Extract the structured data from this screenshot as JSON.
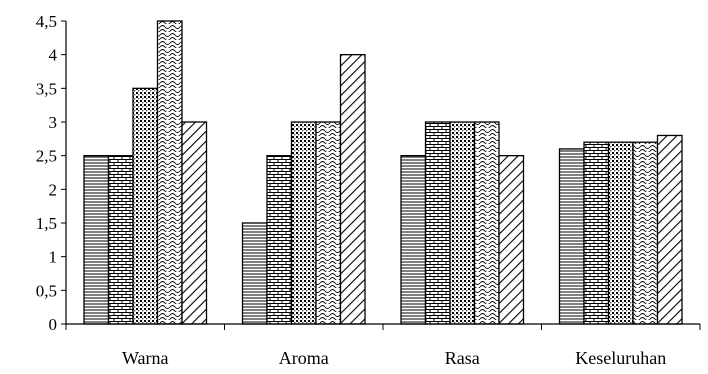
{
  "chart_data": {
    "type": "bar",
    "title": "",
    "xlabel": "",
    "ylabel": "",
    "ylim": [
      0,
      4.5
    ],
    "yticks": [
      "0",
      "0,5",
      "1",
      "1,5",
      "2",
      "2,5",
      "3",
      "3,5",
      "4",
      "4,5"
    ],
    "categories": [
      "Warna",
      "Aroma",
      "Rasa",
      "Keseluruhan"
    ],
    "grid": false,
    "legend": "none",
    "series": [
      {
        "values": [
          2.5,
          1.5,
          2.5,
          2.6
        ],
        "pattern": "hatch-dense-horizontal"
      },
      {
        "values": [
          2.5,
          2.5,
          3.0,
          2.7
        ],
        "pattern": "hatch-brick"
      },
      {
        "values": [
          3.5,
          3.0,
          3.0,
          2.7
        ],
        "pattern": "hatch-dots"
      },
      {
        "values": [
          4.5,
          3.0,
          3.0,
          2.7
        ],
        "pattern": "hatch-waves"
      },
      {
        "values": [
          3.0,
          4.0,
          2.5,
          2.8
        ],
        "pattern": "hatch-diagonal"
      }
    ]
  }
}
